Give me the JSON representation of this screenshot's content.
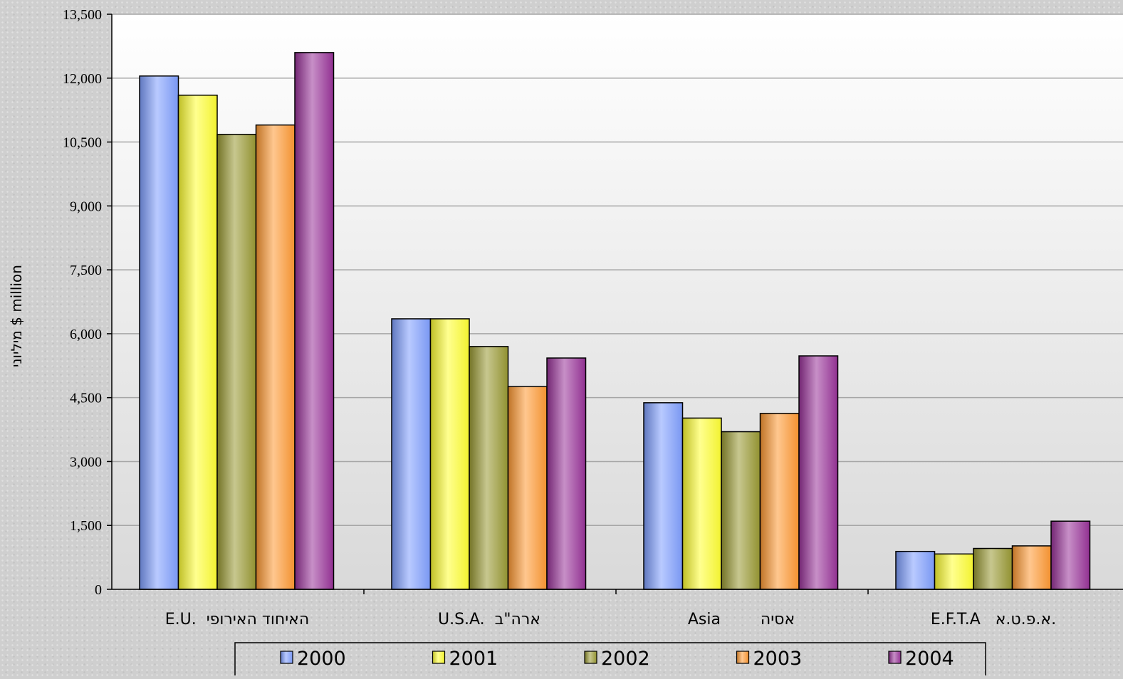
{
  "chart_data": {
    "type": "bar",
    "categories": [
      "E.U.  האיחוד האירופי",
      "U.S.A.  ארה\"ב",
      "Asia        אסיה",
      "E.F.T.A   א.פ.ט.א."
    ],
    "series": [
      {
        "name": "2000",
        "values": [
          12050,
          6350,
          4380,
          890
        ],
        "color": "#7f9fff"
      },
      {
        "name": "2001",
        "values": [
          11600,
          6350,
          4020,
          830
        ],
        "color": "#ffff33"
      },
      {
        "name": "2002",
        "values": [
          10680,
          5700,
          3700,
          960
        ],
        "color": "#999933"
      },
      {
        "name": "2003",
        "values": [
          10900,
          4760,
          4130,
          1020
        ],
        "color": "#ff9933"
      },
      {
        "name": "2004",
        "values": [
          12600,
          5430,
          5480,
          1600
        ],
        "color": "#993399"
      }
    ],
    "ylabel": "מיליוני $ million",
    "ylim": [
      0,
      13500
    ],
    "yticks": [
      "0",
      "1,500",
      "3,000",
      "4,500",
      "6,000",
      "7,500",
      "9,000",
      "10,500",
      "12,000",
      "13,500"
    ],
    "grid": true,
    "legend_position": "bottom"
  }
}
